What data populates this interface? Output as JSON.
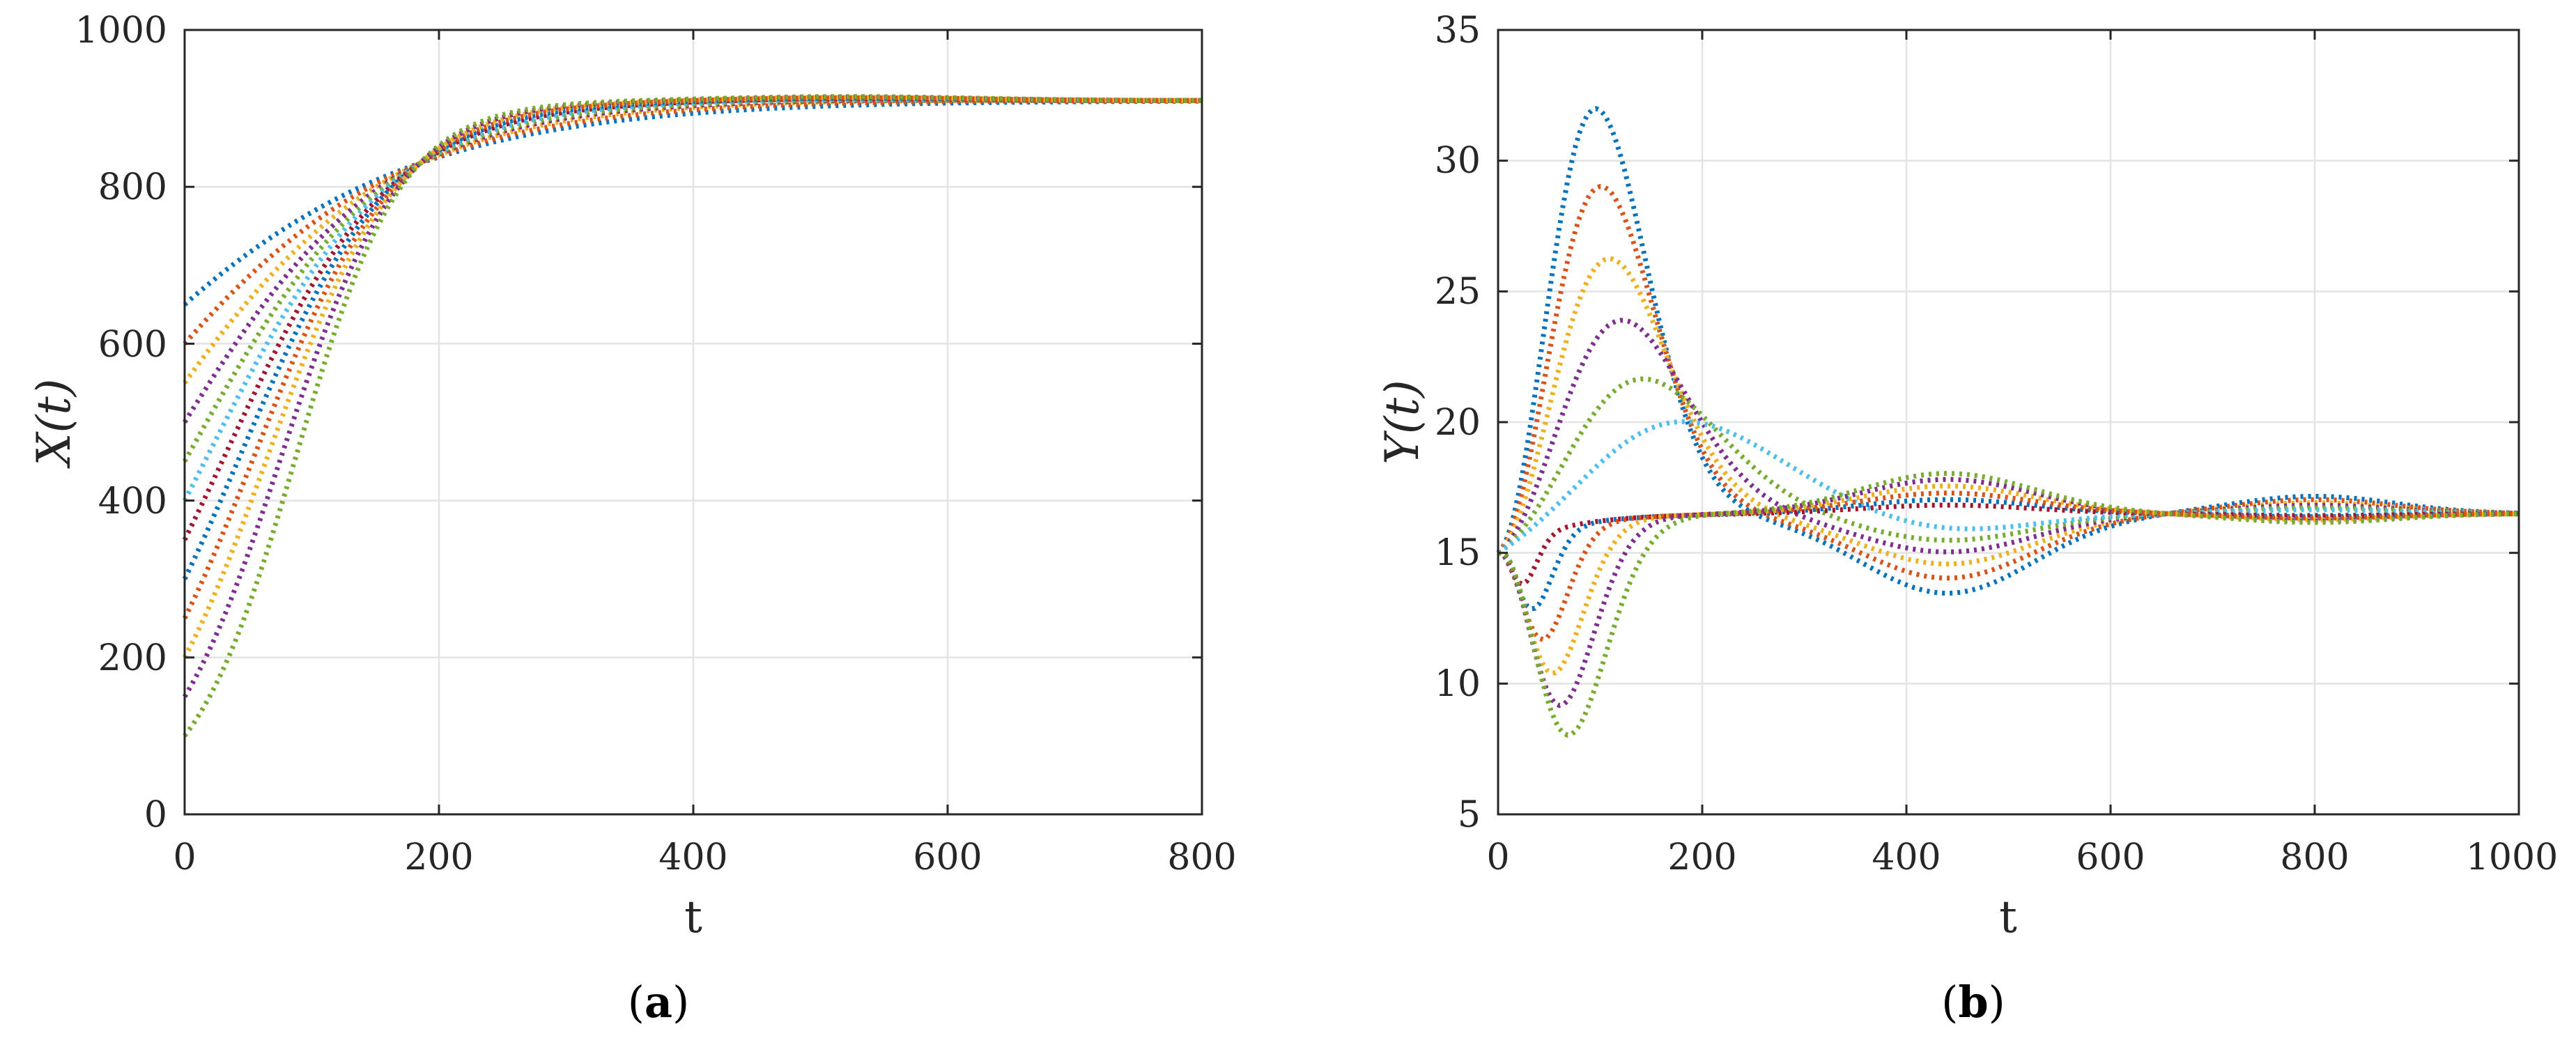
{
  "chart_data": [
    {
      "type": "line",
      "panel_label": {
        "before": "(",
        "letter": "a",
        "after": ")"
      },
      "xlabel": "t",
      "ylabel": "X(t)",
      "xlim": [
        0,
        800
      ],
      "ylim": [
        0,
        1000
      ],
      "xticks": [
        0,
        200,
        400,
        600,
        800
      ],
      "yticks": [
        0,
        200,
        400,
        600,
        800,
        1000
      ],
      "grid": true,
      "line_style": "dotted",
      "model": {
        "form": "logistic_relaxation",
        "carrying_value": 910,
        "crossing_time": 185,
        "crossing_value": 830,
        "t_max": 800
      },
      "series": [
        {
          "x0": 650,
          "color": "#0072BD"
        },
        {
          "x0": 600,
          "color": "#D95319"
        },
        {
          "x0": 550,
          "color": "#EDB120"
        },
        {
          "x0": 500,
          "color": "#7E2F8E"
        },
        {
          "x0": 450,
          "color": "#77AC30"
        },
        {
          "x0": 400,
          "color": "#4DBEEE"
        },
        {
          "x0": 350,
          "color": "#A2142F"
        },
        {
          "x0": 300,
          "color": "#0072BD"
        },
        {
          "x0": 250,
          "color": "#D95319"
        },
        {
          "x0": 200,
          "color": "#EDB120"
        },
        {
          "x0": 150,
          "color": "#7E2F8E"
        },
        {
          "x0": 100,
          "color": "#77AC30"
        }
      ]
    },
    {
      "type": "line",
      "panel_label": {
        "before": "(",
        "letter": "b",
        "after": ")"
      },
      "xlabel": "t",
      "ylabel": "Y(t)",
      "xlim": [
        0,
        1000
      ],
      "ylim": [
        5,
        35
      ],
      "xticks": [
        0,
        200,
        400,
        600,
        800,
        1000
      ],
      "yticks": [
        5,
        10,
        15,
        20,
        25,
        30,
        35
      ],
      "grid": true,
      "line_style": "dotted",
      "model": {
        "form": "damped_oscillation",
        "start_value": 15,
        "equilibrium": 16.5,
        "t_max": 1000
      },
      "series": [
        {
          "extremum_t": 95,
          "extremum_y": 30.8,
          "color": "#0072BD"
        },
        {
          "extremum_t": 100,
          "extremum_y": 27.8,
          "color": "#D95319"
        },
        {
          "extremum_t": 108,
          "extremum_y": 25.0,
          "color": "#EDB120"
        },
        {
          "extremum_t": 120,
          "extremum_y": 22.6,
          "color": "#7E2F8E"
        },
        {
          "extremum_t": 140,
          "extremum_y": 20.3,
          "color": "#77AC30"
        },
        {
          "extremum_t": 180,
          "extremum_y": 18.6,
          "color": "#4DBEEE"
        },
        {
          "extremum_t": 25,
          "extremum_y": 13.3,
          "color": "#A2142F"
        },
        {
          "extremum_t": 35,
          "extremum_y": 12.2,
          "color": "#0072BD"
        },
        {
          "extremum_t": 45,
          "extremum_y": 10.9,
          "color": "#D95319"
        },
        {
          "extremum_t": 55,
          "extremum_y": 9.5,
          "color": "#EDB120"
        },
        {
          "extremum_t": 62,
          "extremum_y": 8.2,
          "color": "#7E2F8E"
        },
        {
          "extremum_t": 70,
          "extremum_y": 7.0,
          "color": "#77AC30"
        }
      ]
    }
  ]
}
